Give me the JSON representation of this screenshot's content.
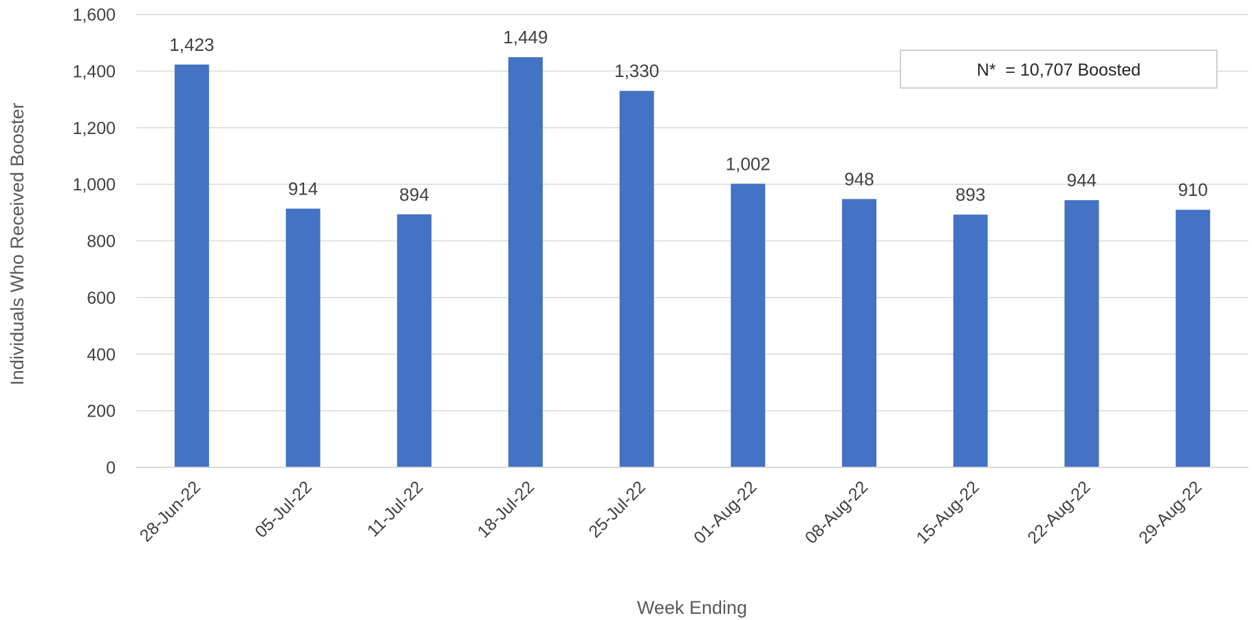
{
  "chart_data": {
    "type": "bar",
    "categories": [
      "28-Jun-22",
      "05-Jul-22",
      "11-Jul-22",
      "18-Jul-22",
      "25-Jul-22",
      "01-Aug-22",
      "08-Aug-22",
      "15-Aug-22",
      "22-Aug-22",
      "29-Aug-22"
    ],
    "values": [
      1423,
      914,
      894,
      1449,
      1330,
      1002,
      948,
      893,
      944,
      910
    ],
    "data_labels": [
      "1,423",
      "914",
      "894",
      "1,449",
      "1,330",
      "1,002",
      "948",
      "893",
      "944",
      "910"
    ],
    "xlabel": "Week Ending",
    "ylabel": "Individuals Who Received Booster",
    "ylim": [
      0,
      1600
    ],
    "yticks": [
      0,
      200,
      400,
      600,
      800,
      1000,
      1200,
      1400,
      1600
    ],
    "ytick_labels": [
      "0",
      "200",
      "400",
      "600",
      "800",
      "1,000",
      "1,200",
      "1,400",
      "1,600"
    ],
    "annotation": "N*  = 10,707 Boosted",
    "grid": "horizontal",
    "bar_color": "#4472c4",
    "legend": "none"
  }
}
